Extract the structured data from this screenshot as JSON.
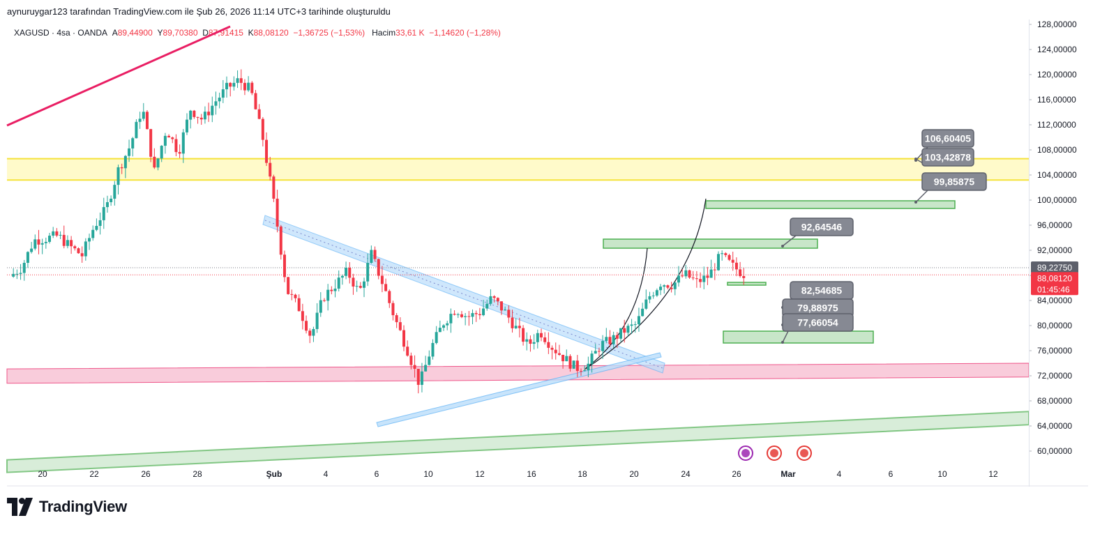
{
  "header": {
    "attribution": "aynuruygar123 tarafından TradingView.com ile Şub 26, 2026 11:14 UTC+3 tarihinde oluşturuldu"
  },
  "legend": {
    "symbol": "XAGUSD · 4sa · OANDA",
    "open_label": "A",
    "open": "89,44900",
    "high_label": "Y",
    "high": "89,70380",
    "low_label": "D",
    "low": "87,91415",
    "close_label": "K",
    "close": "88,08120",
    "change": "−1,36725 (−1,53%)",
    "volume_label": "Hacim",
    "volume": "33,61 K",
    "volume_change": "−1,14620 (−1,28%)"
  },
  "brand": {
    "name": "TradingView"
  },
  "colors": {
    "up": "#26a69a",
    "down": "#f23645",
    "resistance_band": "#fff9c4",
    "resistance_line": "#f5e23a",
    "support_band": "#f8bbd0",
    "support_line": "#e91e63",
    "target_box": "#c8e6c9",
    "target_border": "#4caf50",
    "channel": "#90caf9",
    "callout": "#868993"
  },
  "chart_data": {
    "type": "candlestick",
    "symbol": "XAGUSD",
    "timeframe": "4sa",
    "y_axis": {
      "range": [
        58,
        129
      ],
      "ticks": [
        "128,00000",
        "124,00000",
        "120,00000",
        "116,00000",
        "112,00000",
        "108,00000",
        "104,00000",
        "100,00000",
        "96,00000",
        "92,00000",
        "88,00000",
        "84,00000",
        "80,00000",
        "76,00000",
        "72,00000",
        "68,00000",
        "64,00000",
        "60,00000"
      ]
    },
    "x_axis": {
      "ticks": [
        {
          "label": "20",
          "day": 20
        },
        {
          "label": "22",
          "day": 22
        },
        {
          "label": "26",
          "day": 26
        },
        {
          "label": "28",
          "day": 28
        },
        {
          "label": "Şub",
          "day": 32
        },
        {
          "label": "4",
          "day": 35
        },
        {
          "label": "6",
          "day": 37
        },
        {
          "label": "10",
          "day": 39
        },
        {
          "label": "12",
          "day": 41
        },
        {
          "label": "16",
          "day": 43
        },
        {
          "label": "18",
          "day": 45
        },
        {
          "label": "20",
          "day": 47
        },
        {
          "label": "24",
          "day": 49
        },
        {
          "label": "26",
          "day": 51
        },
        {
          "label": "Mar",
          "day": 53
        },
        {
          "label": "4",
          "day": 55
        },
        {
          "label": "6",
          "day": 57
        },
        {
          "label": "10",
          "day": 59
        },
        {
          "label": "12",
          "day": 61
        }
      ]
    },
    "price_labels": {
      "reference": "89,22750",
      "last": "88,08120",
      "countdown": "01:45:46"
    },
    "callouts": [
      "106,60405",
      "103,42878",
      "99,85875",
      "92,64546",
      "82,54685",
      "79,88975",
      "77,66054"
    ],
    "zones": {
      "resistance": [
        103.2,
        106.6
      ],
      "support": [
        71.0,
        73.0
      ]
    },
    "price_path": [
      [
        0,
        87.8
      ],
      [
        1,
        89.3
      ],
      [
        2,
        93.6
      ],
      [
        3,
        93.9
      ],
      [
        4,
        94.3
      ],
      [
        5,
        92.6
      ],
      [
        6,
        91.2
      ],
      [
        7,
        95.8
      ],
      [
        8,
        98.6
      ],
      [
        9,
        104.8
      ],
      [
        10,
        108.7
      ],
      [
        11,
        114.8
      ],
      [
        12,
        104.6
      ],
      [
        13,
        111.4
      ],
      [
        14,
        107.6
      ],
      [
        15,
        114.5
      ],
      [
        16,
        112.8
      ],
      [
        17,
        115.6
      ],
      [
        18,
        117.8
      ],
      [
        19,
        119.1
      ],
      [
        20,
        117.5
      ],
      [
        21,
        109.8
      ],
      [
        22,
        98.5
      ],
      [
        23,
        85.6
      ],
      [
        24,
        82.8
      ],
      [
        25,
        78.2
      ],
      [
        26,
        84.5
      ],
      [
        27,
        86.5
      ],
      [
        28,
        88.6
      ],
      [
        29,
        85.2
      ],
      [
        30,
        91.4
      ],
      [
        31,
        86.4
      ],
      [
        32,
        80.9
      ],
      [
        33,
        76.1
      ],
      [
        34,
        70.6
      ],
      [
        35,
        76.6
      ],
      [
        36,
        80.5
      ],
      [
        37,
        82.7
      ],
      [
        38,
        81.4
      ],
      [
        39,
        82.1
      ],
      [
        40,
        84.4
      ],
      [
        41,
        82.4
      ],
      [
        42,
        79.6
      ],
      [
        43,
        76.8
      ],
      [
        44,
        79.1
      ],
      [
        45,
        76.6
      ],
      [
        46,
        74.8
      ],
      [
        47,
        73.2
      ],
      [
        48,
        73.8
      ],
      [
        49,
        76.9
      ],
      [
        50,
        77.8
      ],
      [
        51,
        79.2
      ],
      [
        52,
        80.2
      ],
      [
        53,
        84.5
      ],
      [
        54,
        86.8
      ],
      [
        55,
        86.5
      ],
      [
        56,
        88.2
      ],
      [
        57,
        86.9
      ],
      [
        58,
        87.9
      ],
      [
        59,
        91.2
      ],
      [
        60,
        89.4
      ],
      [
        61,
        88.1
      ]
    ]
  }
}
